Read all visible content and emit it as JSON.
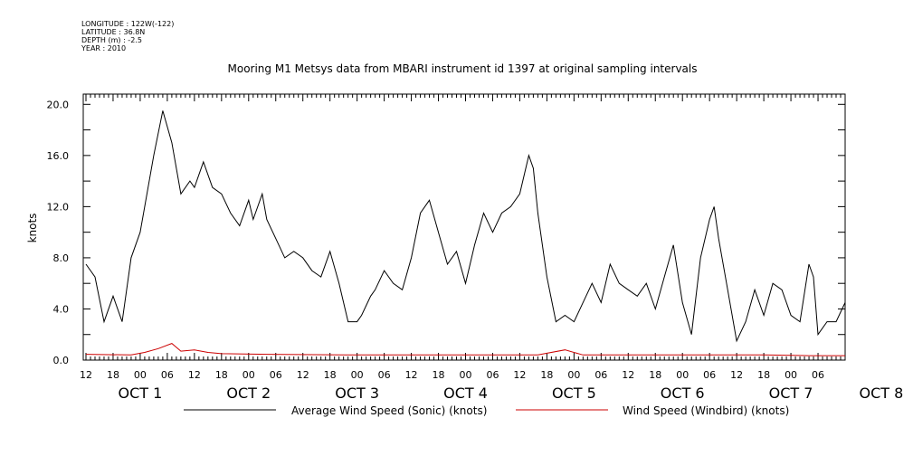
{
  "meta": {
    "longitude": "LONGITUDE : 122W(-122)",
    "latitude": "LATITUDE : 36.8N",
    "depth": "DEPTH (m) : -2.5",
    "year": "YEAR : 2010"
  },
  "chart_data": {
    "type": "line",
    "title": "Mooring M1 Metsys data from MBARI instrument id 1397 at original sampling intervals",
    "ylabel": "knots",
    "xlabel": "",
    "ylim": [
      0,
      20.8
    ],
    "yticks": [
      "0.0",
      "4.0",
      "8.0",
      "12.0",
      "16.0",
      "20.0"
    ],
    "xlim_hours": [
      0,
      168
    ],
    "hour_ticks": [
      "12",
      "18",
      "00",
      "06",
      "12",
      "18",
      "00",
      "06",
      "12",
      "18",
      "00",
      "06",
      "12",
      "18",
      "00",
      "06",
      "12",
      "18",
      "00",
      "06",
      "12",
      "18",
      "00",
      "06",
      "12",
      "18",
      "00",
      "06"
    ],
    "day_labels": [
      "OCT 1",
      "OCT 2",
      "OCT 3",
      "OCT 4",
      "OCT 5",
      "OCT 6",
      "OCT 7",
      "OCT 8"
    ],
    "legend": "bottom",
    "series": [
      {
        "name": "Average Wind Speed (Sonic) (knots)",
        "color": "#000000",
        "x": [
          0,
          2,
          4,
          6,
          8,
          10,
          12,
          13,
          15,
          17,
          19,
          21,
          23,
          24,
          26,
          28,
          30,
          32,
          34,
          36,
          37,
          39,
          40,
          42,
          44,
          46,
          48,
          50,
          52,
          54,
          56,
          58,
          60,
          61,
          63,
          64,
          66,
          68,
          70,
          72,
          74,
          76,
          78,
          80,
          82,
          84,
          86,
          88,
          90,
          92,
          94,
          96,
          98,
          99,
          100,
          102,
          104,
          106,
          108,
          110,
          112,
          114,
          116,
          118,
          120,
          122,
          124,
          126,
          128,
          130,
          132,
          134,
          136,
          138,
          139,
          140,
          142,
          144,
          146,
          148,
          150,
          152,
          154,
          156,
          158,
          160,
          161,
          162,
          164,
          166,
          168
        ],
        "y": [
          7.5,
          6.5,
          3.0,
          5.0,
          3.0,
          8.0,
          10.0,
          12.0,
          16.0,
          19.5,
          17.0,
          13.0,
          14.0,
          13.5,
          15.5,
          13.5,
          13.0,
          11.5,
          10.5,
          12.5,
          11.0,
          13.0,
          11.0,
          9.5,
          8.0,
          8.5,
          8.0,
          7.0,
          6.5,
          8.5,
          6.0,
          3.0,
          3.0,
          3.5,
          5.0,
          5.5,
          7.0,
          6.0,
          5.5,
          8.0,
          11.5,
          12.5,
          10.0,
          7.5,
          8.5,
          6.0,
          9.0,
          11.5,
          10.0,
          11.5,
          12.0,
          13.0,
          16.0,
          15.0,
          11.5,
          6.5,
          3.0,
          3.5,
          3.0,
          4.5,
          6.0,
          4.5,
          7.5,
          6.0,
          5.5,
          5.0,
          6.0,
          4.0,
          6.5,
          9.0,
          4.5,
          2.0,
          8.0,
          11.0,
          12.0,
          9.5,
          5.5,
          1.5,
          3.0,
          5.5,
          3.5,
          6.0,
          5.5,
          3.5,
          3.0,
          7.5,
          6.5,
          2.0,
          3.0,
          3.0,
          4.5
        ]
      },
      {
        "name": "Wind Speed (Windbird) (knots)",
        "color": "#cc0000",
        "x": [
          0,
          10,
          13,
          16,
          19,
          21,
          24,
          27,
          30,
          40,
          60,
          80,
          100,
          106,
          110,
          130,
          150,
          160,
          168
        ],
        "y": [
          0.45,
          0.4,
          0.6,
          0.9,
          1.3,
          0.7,
          0.8,
          0.6,
          0.5,
          0.45,
          0.4,
          0.4,
          0.4,
          0.8,
          0.4,
          0.4,
          0.4,
          0.35,
          0.35
        ]
      }
    ]
  }
}
